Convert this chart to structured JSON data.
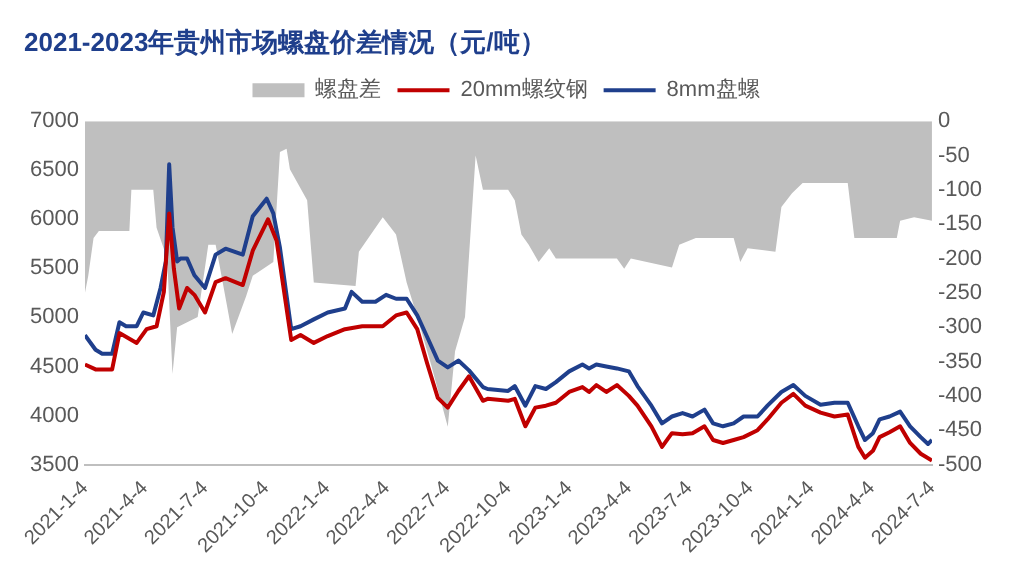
{
  "chart_data": {
    "type": "line",
    "title": "2021-2023年贵州市场螺盘价差情况（元/吨）",
    "legend": "top",
    "grid": false,
    "marker": "none",
    "line_style": "solid",
    "xlim": [
      "2021-01-04",
      "2024-07-04"
    ],
    "xticks": [
      {
        "value": "2021-01-04",
        "label": "2021-1-4"
      },
      {
        "value": "2021-04-04",
        "label": "2021-4-4"
      },
      {
        "value": "2021-07-04",
        "label": "2021-7-4"
      },
      {
        "value": "2021-10-04",
        "label": "2021-10-4"
      },
      {
        "value": "2022-01-04",
        "label": "2022-1-4"
      },
      {
        "value": "2022-04-04",
        "label": "2022-4-4"
      },
      {
        "value": "2022-07-04",
        "label": "2022-7-4"
      },
      {
        "value": "2022-10-04",
        "label": "2022-10-4"
      },
      {
        "value": "2023-01-04",
        "label": "2023-1-4"
      },
      {
        "value": "2023-04-04",
        "label": "2023-4-4"
      },
      {
        "value": "2023-07-04",
        "label": "2023-7-4"
      },
      {
        "value": "2023-10-04",
        "label": "2023-10-4"
      },
      {
        "value": "2024-01-04",
        "label": "2024-1-4"
      },
      {
        "value": "2024-04-04",
        "label": "2024-4-4"
      },
      {
        "value": "2024-07-04",
        "label": "2024-7-4"
      }
    ],
    "ylim": [
      3500,
      7000
    ],
    "yticks": [
      3500,
      4000,
      4500,
      5000,
      5500,
      6000,
      6500,
      7000
    ],
    "y2lim": [
      -500,
      0
    ],
    "y2ticks": [
      -500,
      -450,
      -400,
      -350,
      -300,
      -250,
      -200,
      -150,
      -100,
      -50,
      0
    ],
    "series": [
      {
        "name": "螺盘差",
        "type": "area",
        "axis": "y2",
        "color": "#bfbfbf",
        "x": [
          "2021-01-04",
          "2021-01-09",
          "2021-01-17",
          "2021-01-25",
          "2021-03-12",
          "2021-03-15",
          "2021-04-17",
          "2021-04-22",
          "2021-05-08",
          "2021-05-16",
          "2021-05-23",
          "2021-06-23",
          "2021-07-09",
          "2021-07-20",
          "2021-07-25",
          "2021-08-14",
          "2021-09-04",
          "2021-09-14",
          "2021-10-15",
          "2021-10-25",
          "2021-11-04",
          "2021-11-09",
          "2021-12-05",
          "2021-12-15",
          "2022-02-16",
          "2022-02-21",
          "2022-03-29",
          "2022-04-18",
          "2022-05-04",
          "2022-05-20",
          "2022-06-10",
          "2022-07-05",
          "2022-07-16",
          "2022-07-31",
          "2022-08-16",
          "2022-08-27",
          "2022-09-03",
          "2022-10-04",
          "2022-10-14",
          "2022-10-24",
          "2022-11-04",
          "2022-11-19",
          "2022-12-05",
          "2022-12-15",
          "2023-03-17",
          "2023-03-28",
          "2023-04-07",
          "2023-06-08",
          "2023-06-19",
          "2023-07-14",
          "2023-09-09",
          "2023-09-19",
          "2023-09-30",
          "2023-11-11",
          "2023-11-20",
          "2023-12-06",
          "2023-12-22",
          "2024-02-28",
          "2024-03-09",
          "2024-05-12",
          "2024-05-17",
          "2024-06-07",
          "2024-07-04"
        ],
        "values": [
          -250,
          -225,
          -170,
          -160,
          -160,
          -100,
          -100,
          -155,
          -200,
          -368,
          -300,
          -285,
          -180,
          -180,
          -205,
          -310,
          -255,
          -225,
          -205,
          -45,
          -40,
          -70,
          -115,
          -235,
          -240,
          -190,
          -140,
          -165,
          -235,
          -285,
          -355,
          -445,
          -335,
          -285,
          -50,
          -100,
          -100,
          -100,
          -115,
          -165,
          -180,
          -205,
          -185,
          -200,
          -200,
          -215,
          -200,
          -213,
          -180,
          -170,
          -170,
          -205,
          -185,
          -190,
          -125,
          -105,
          -90,
          -90,
          -170,
          -170,
          -145,
          -140,
          -145
        ]
      },
      {
        "name": "20mm螺纹钢",
        "color": "#c00000",
        "x": [
          "2021-01-04",
          "2021-01-20",
          "2021-02-14",
          "2021-02-25",
          "2021-03-23",
          "2021-04-07",
          "2021-04-22",
          "2021-05-03",
          "2021-05-11",
          "2021-05-18",
          "2021-05-26",
          "2021-06-07",
          "2021-06-18",
          "2021-07-04",
          "2021-07-20",
          "2021-08-04",
          "2021-08-30",
          "2021-09-14",
          "2021-10-07",
          "2021-10-20",
          "2021-11-04",
          "2021-11-11",
          "2021-11-25",
          "2021-12-15",
          "2022-01-05",
          "2022-01-31",
          "2022-02-26",
          "2022-03-29",
          "2022-04-18",
          "2022-05-04",
          "2022-05-20",
          "2022-06-04",
          "2022-06-20",
          "2022-07-05",
          "2022-07-21",
          "2022-08-06",
          "2022-08-27",
          "2022-09-03",
          "2022-10-04",
          "2022-10-14",
          "2022-10-30",
          "2022-11-14",
          "2022-11-30",
          "2022-12-15",
          "2023-01-04",
          "2023-01-24",
          "2023-02-03",
          "2023-02-14",
          "2023-03-01",
          "2023-03-17",
          "2023-04-04",
          "2023-04-17",
          "2023-05-08",
          "2023-05-24",
          "2023-06-08",
          "2023-06-24",
          "2023-07-09",
          "2023-07-27",
          "2023-08-09",
          "2023-08-24",
          "2023-09-09",
          "2023-09-24",
          "2023-10-15",
          "2023-10-30",
          "2023-11-20",
          "2023-12-08",
          "2023-12-26",
          "2024-01-18",
          "2024-02-08",
          "2024-02-28",
          "2024-03-15",
          "2024-03-25",
          "2024-04-06",
          "2024-04-16",
          "2024-05-01",
          "2024-05-17",
          "2024-06-01",
          "2024-06-17",
          "2024-07-04"
        ],
        "values": [
          4520,
          4470,
          4470,
          4840,
          4740,
          4880,
          4910,
          5260,
          6060,
          5500,
          5090,
          5300,
          5230,
          5050,
          5360,
          5400,
          5330,
          5680,
          6000,
          5780,
          5090,
          4770,
          4820,
          4740,
          4810,
          4880,
          4910,
          4910,
          5020,
          5050,
          4880,
          4530,
          4180,
          4080,
          4250,
          4400,
          4150,
          4170,
          4150,
          4170,
          3890,
          4080,
          4100,
          4130,
          4240,
          4290,
          4240,
          4310,
          4240,
          4310,
          4200,
          4100,
          3890,
          3680,
          3820,
          3810,
          3820,
          3890,
          3750,
          3720,
          3750,
          3780,
          3850,
          3960,
          4130,
          4220,
          4100,
          4030,
          3990,
          4010,
          3680,
          3570,
          3640,
          3780,
          3830,
          3890,
          3720,
          3610,
          3540
        ]
      },
      {
        "name": "8mm盘螺",
        "color": "#1f3f8c",
        "x": [
          "2021-01-04",
          "2021-01-20",
          "2021-01-30",
          "2021-02-14",
          "2021-02-25",
          "2021-03-07",
          "2021-03-23",
          "2021-04-02",
          "2021-04-17",
          "2021-04-28",
          "2021-05-06",
          "2021-05-11",
          "2021-05-16",
          "2021-05-23",
          "2021-05-28",
          "2021-06-07",
          "2021-06-18",
          "2021-07-04",
          "2021-07-20",
          "2021-08-04",
          "2021-08-30",
          "2021-09-14",
          "2021-10-05",
          "2021-10-15",
          "2021-10-25",
          "2021-11-04",
          "2021-11-11",
          "2021-11-25",
          "2021-12-15",
          "2022-01-05",
          "2022-01-31",
          "2022-02-10",
          "2022-02-26",
          "2022-03-18",
          "2022-04-03",
          "2022-04-18",
          "2022-05-04",
          "2022-05-20",
          "2022-06-04",
          "2022-06-20",
          "2022-07-05",
          "2022-07-21",
          "2022-08-06",
          "2022-08-27",
          "2022-09-03",
          "2022-10-04",
          "2022-10-14",
          "2022-10-30",
          "2022-11-14",
          "2022-11-30",
          "2022-12-15",
          "2023-01-04",
          "2023-01-24",
          "2023-02-03",
          "2023-02-14",
          "2023-03-01",
          "2023-03-17",
          "2023-04-04",
          "2023-04-17",
          "2023-05-08",
          "2023-05-24",
          "2023-06-08",
          "2023-06-24",
          "2023-07-09",
          "2023-07-27",
          "2023-08-09",
          "2023-08-24",
          "2023-09-09",
          "2023-09-24",
          "2023-10-15",
          "2023-10-30",
          "2023-11-20",
          "2023-12-08",
          "2023-12-26",
          "2024-01-18",
          "2024-02-08",
          "2024-02-28",
          "2024-03-15",
          "2024-03-25",
          "2024-04-06",
          "2024-04-16",
          "2024-05-01",
          "2024-05-17",
          "2024-06-01",
          "2024-06-17",
          "2024-06-28",
          "2024-07-04"
        ],
        "values": [
          4820,
          4670,
          4630,
          4630,
          4950,
          4910,
          4910,
          5050,
          5020,
          5300,
          5570,
          6560,
          5920,
          5570,
          5600,
          5600,
          5430,
          5300,
          5640,
          5700,
          5640,
          6030,
          6210,
          6060,
          5710,
          5220,
          4880,
          4910,
          4980,
          5050,
          5090,
          5260,
          5160,
          5160,
          5230,
          5190,
          5190,
          5020,
          4800,
          4560,
          4490,
          4560,
          4460,
          4290,
          4270,
          4250,
          4300,
          4100,
          4300,
          4270,
          4340,
          4450,
          4520,
          4480,
          4520,
          4500,
          4480,
          4450,
          4300,
          4100,
          3920,
          3990,
          4025,
          3990,
          4060,
          3920,
          3890,
          3920,
          3990,
          3990,
          4100,
          4240,
          4310,
          4200,
          4110,
          4130,
          4130,
          3890,
          3750,
          3820,
          3960,
          3990,
          4040,
          3890,
          3780,
          3710,
          3750
        ]
      }
    ]
  }
}
